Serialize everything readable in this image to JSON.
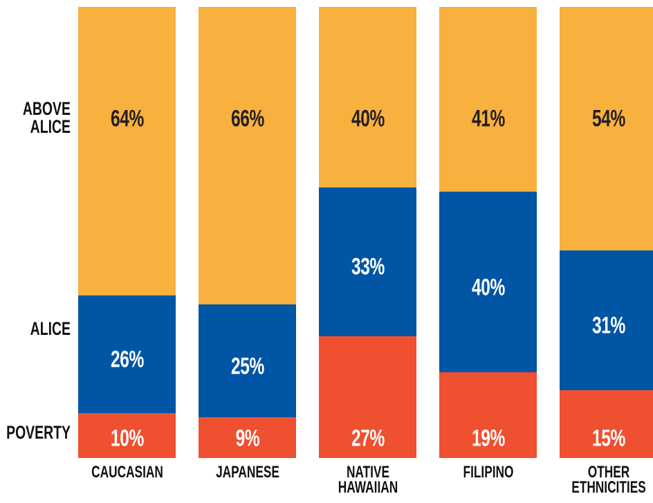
{
  "chart_data": {
    "type": "stacked_bar",
    "categories": [
      "CAUCASIAN",
      "JAPANESE",
      "NATIVE HAWAIIAN",
      "FILIPINO",
      "OTHER ETHNICITIES"
    ],
    "series": [
      {
        "name": "POVERTY",
        "color": "#ef5030",
        "text_color": "#ffffff",
        "values": [
          10,
          9,
          27,
          19,
          15
        ],
        "value_labels": [
          "10%",
          "9%",
          "27%",
          "19%",
          "15%"
        ]
      },
      {
        "name": "ALICE",
        "color": "#0055a5",
        "text_color": "#ffffff",
        "values": [
          26,
          25,
          33,
          40,
          31
        ],
        "value_labels": [
          "26%",
          "25%",
          "33%",
          "40%",
          "31%"
        ]
      },
      {
        "name": "ABOVE ALICE",
        "color": "#f8b03e",
        "text_color": "#231f20",
        "values": [
          64,
          66,
          40,
          41,
          54
        ],
        "value_labels": [
          "64%",
          "66%",
          "40%",
          "41%",
          "54%"
        ]
      }
    ]
  }
}
